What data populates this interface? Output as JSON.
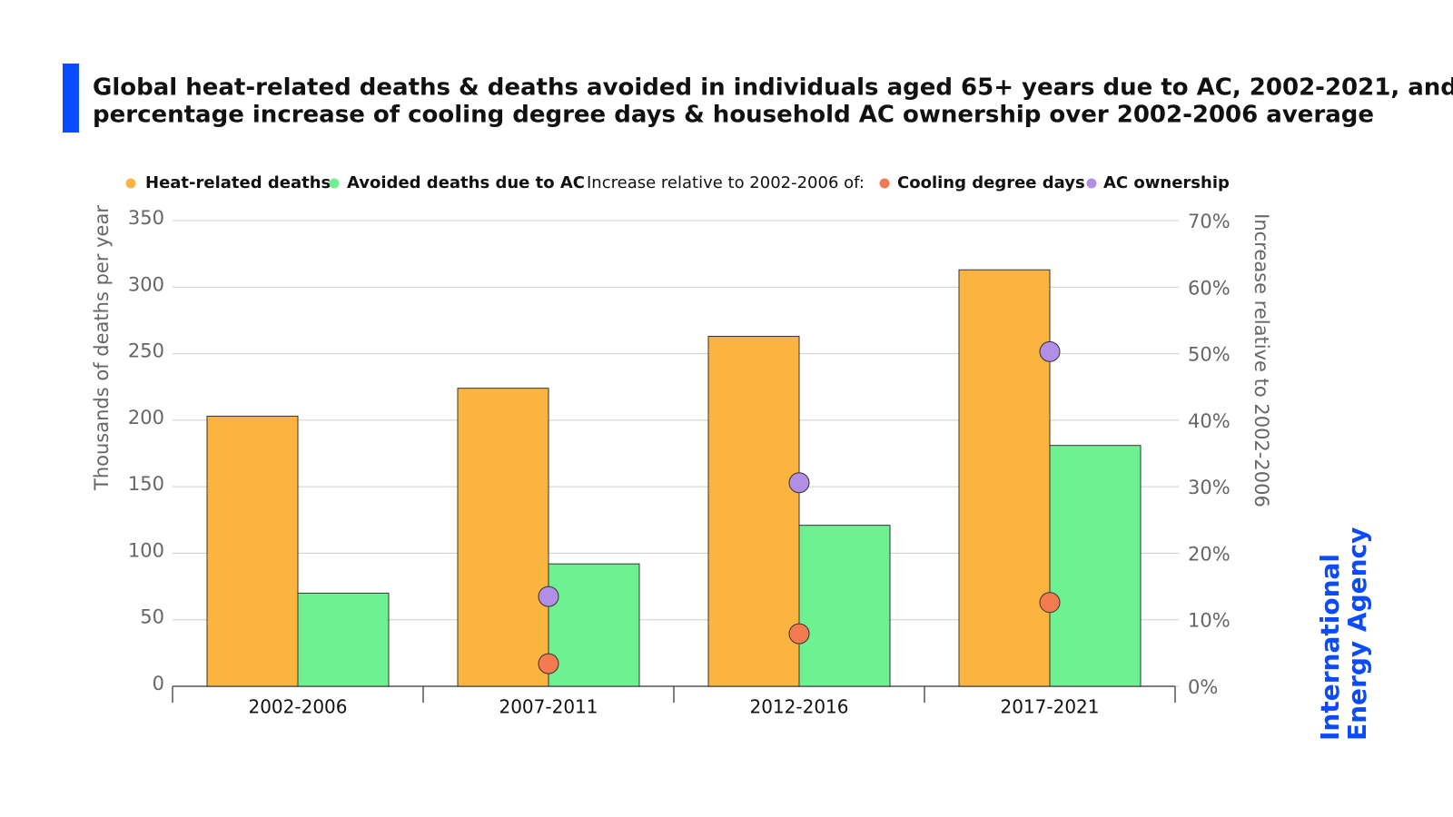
{
  "chart_data": {
    "type": "bar",
    "title": [
      "Global heat-related deaths & deaths avoided in individuals aged 65+ years due to AC, 2002-2021, and",
      "percentage increase of cooling degree days & household AC ownership over 2002-2006 average"
    ],
    "ylabel": "Thousands of deaths per year",
    "y2label": "Increase relative to 2002-2006",
    "legend_group_label": "Increase relative to 2002-2006 of:",
    "categories": [
      "2002-2006",
      "2007-2011",
      "2012-2016",
      "2017-2021"
    ],
    "series": [
      {
        "name": "Heat-related deaths",
        "type": "bar",
        "color": "#fbb440",
        "values": [
          203,
          224,
          263,
          313
        ]
      },
      {
        "name": "Avoided deaths due to AC",
        "type": "bar",
        "color": "#6ef190",
        "values": [
          70,
          92,
          121,
          181
        ]
      },
      {
        "name": "Cooling degree days",
        "type": "scatter",
        "axis": "y2",
        "color": "#f47b50",
        "values": [
          null,
          3.4,
          7.9,
          12.6
        ]
      },
      {
        "name": "AC ownership",
        "type": "scatter",
        "axis": "y2",
        "color": "#b18fe6",
        "values": [
          null,
          13.5,
          30.6,
          50.3
        ]
      }
    ],
    "ylim": [
      0,
      350
    ],
    "yticks": [
      0,
      50,
      100,
      150,
      200,
      250,
      300,
      350
    ],
    "y2lim": [
      0,
      70
    ],
    "y2ticks": [
      {
        "value": 0,
        "label": "0%"
      },
      {
        "value": 10,
        "label": "10%"
      },
      {
        "value": 20,
        "label": "20%"
      },
      {
        "value": 30,
        "label": "30%"
      },
      {
        "value": 40,
        "label": "40%"
      },
      {
        "value": 50,
        "label": "50%"
      },
      {
        "value": 60,
        "label": "60%"
      },
      {
        "value": 70,
        "label": "70%"
      }
    ],
    "grid": true
  },
  "logo": [
    "International",
    "Energy Agency"
  ]
}
